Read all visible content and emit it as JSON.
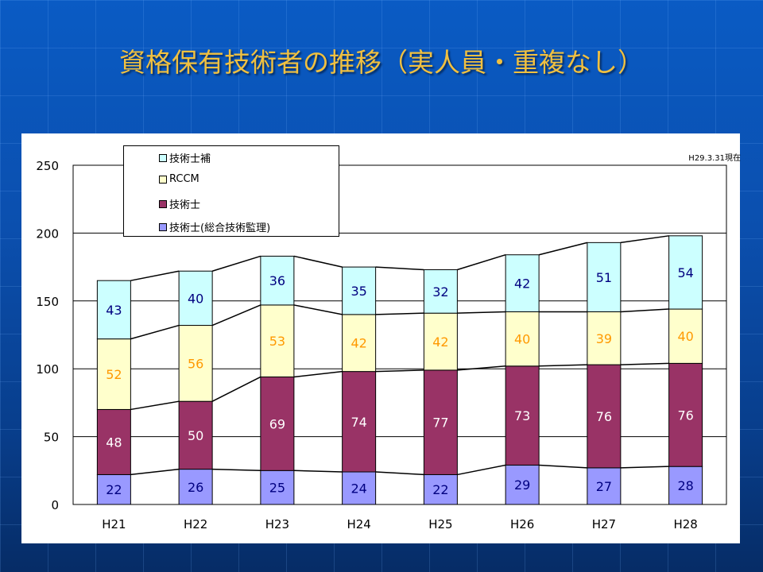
{
  "title": "資格保有技術者の推移（実人員・重複なし）",
  "chart_data": {
    "type": "bar",
    "stacked": true,
    "title": "資格保有技術者の推移（実人員・重複なし）",
    "note": "H29.3.31現在",
    "categories": [
      "H21",
      "H22",
      "H23",
      "H24",
      "H25",
      "H26",
      "H27",
      "H28"
    ],
    "ylim": [
      0,
      250
    ],
    "yticks": [
      0,
      50,
      100,
      150,
      200,
      250
    ],
    "series": [
      {
        "name": "技術士(総合技術監理)",
        "color": "#9999FF",
        "label_color": "#000080",
        "values": [
          22,
          26,
          25,
          24,
          22,
          29,
          27,
          28
        ]
      },
      {
        "name": "技術士",
        "color": "#993366",
        "label_color": "#FFFFFF",
        "values": [
          48,
          50,
          69,
          74,
          77,
          73,
          76,
          76
        ]
      },
      {
        "name": "RCCM",
        "color": "#FFFFCC",
        "label_color": "#FF9900",
        "values": [
          52,
          56,
          53,
          42,
          42,
          40,
          39,
          40
        ]
      },
      {
        "name": "技術士補",
        "color": "#CCFFFF",
        "label_color": "#000080",
        "values": [
          43,
          40,
          36,
          35,
          32,
          42,
          51,
          54
        ]
      }
    ],
    "legend": "top-left",
    "grid": true
  }
}
